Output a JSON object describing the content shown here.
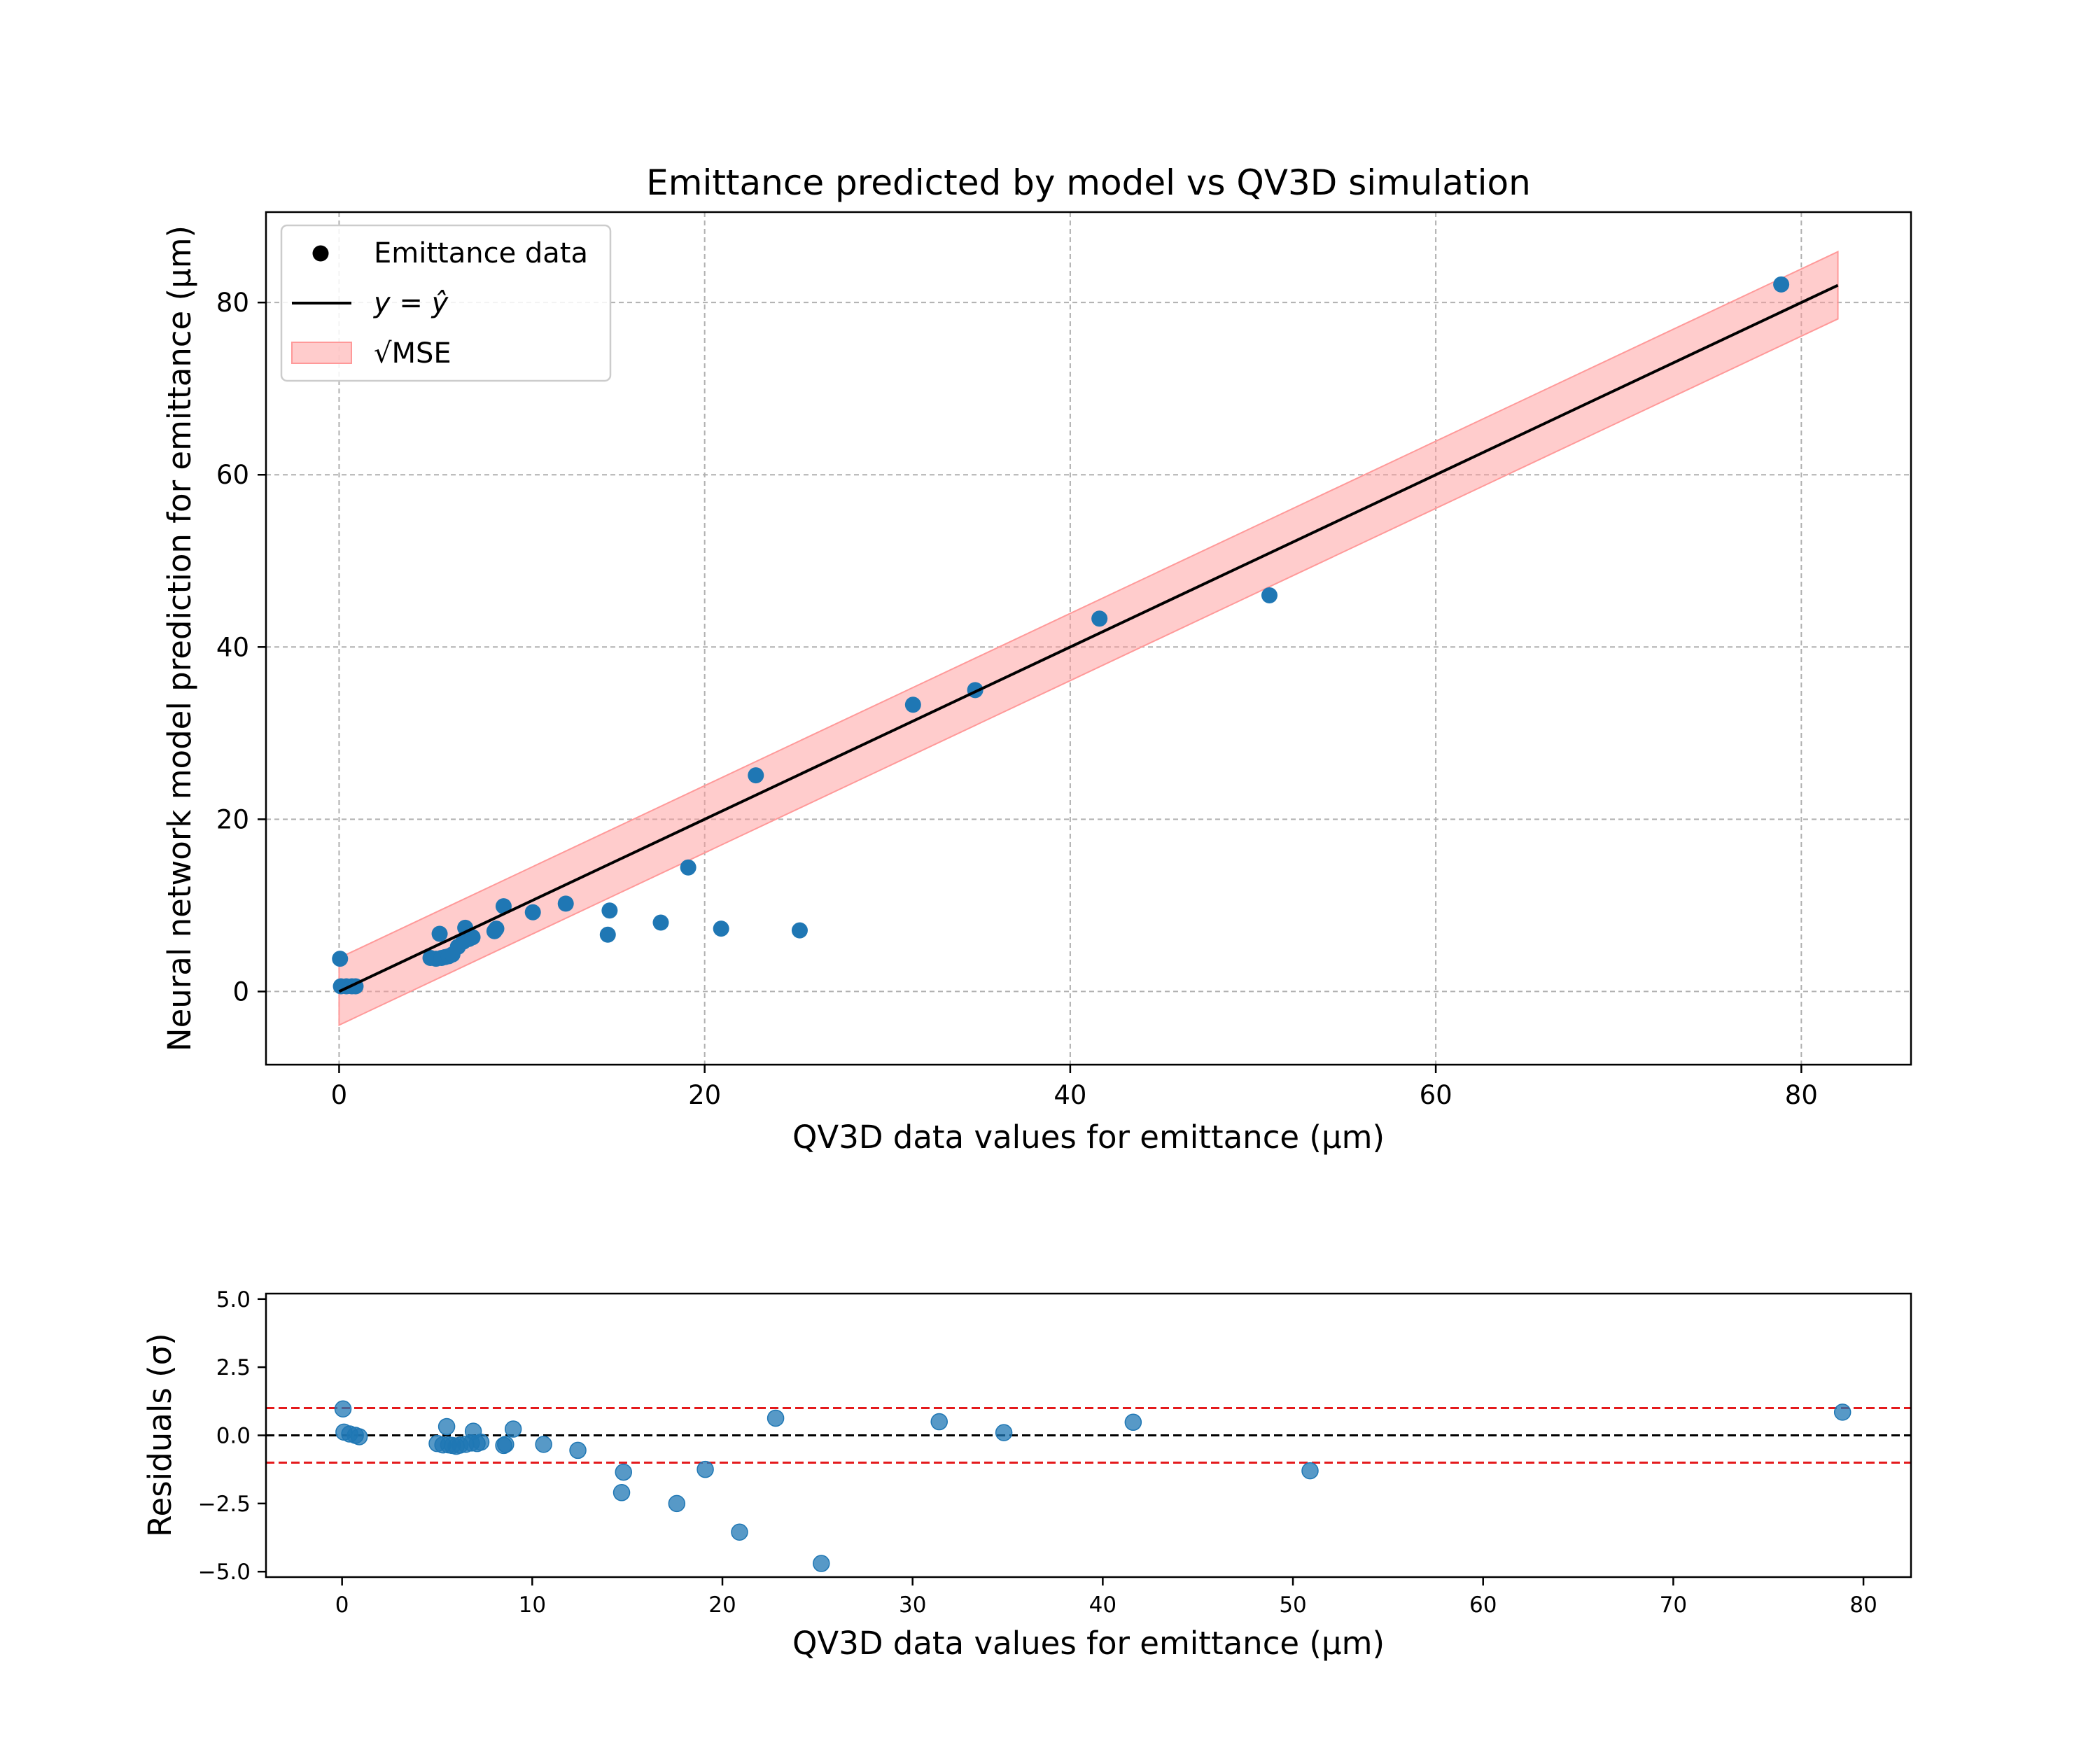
{
  "chart_data": [
    {
      "type": "scatter",
      "title": "Emittance predicted by model vs QV3D simulation",
      "xlabel": "QV3D data values for emittance (μm)",
      "ylabel": "Neural network model prediction for emittance (μm)",
      "xlim": [
        -4,
        86
      ],
      "ylim": [
        -8.5,
        90.5
      ],
      "xticks": [
        0,
        20,
        40,
        60,
        80
      ],
      "yticks": [
        0,
        20,
        40,
        60,
        80
      ],
      "grid": true,
      "legend_position": "top-left",
      "legend": {
        "data": "Emittance data",
        "line": "y = ŷ",
        "band": "√MSE"
      },
      "band_halfwidth": 3.9,
      "reference_line": {
        "x": [
          0,
          82
        ],
        "y": [
          0,
          82
        ]
      },
      "colors": {
        "points": "#1f77b4",
        "line": "#000000",
        "band": "#ff9999"
      },
      "series": [
        {
          "name": "Emittance data",
          "points": [
            [
              0.05,
              3.8
            ],
            [
              0.1,
              0.6
            ],
            [
              0.4,
              0.6
            ],
            [
              0.7,
              0.6
            ],
            [
              0.9,
              0.6
            ],
            [
              5.0,
              3.9
            ],
            [
              5.3,
              3.8
            ],
            [
              5.5,
              6.7
            ],
            [
              5.6,
              3.9
            ],
            [
              5.8,
              4.0
            ],
            [
              6.0,
              4.1
            ],
            [
              6.2,
              4.3
            ],
            [
              6.5,
              5.2
            ],
            [
              6.8,
              5.8
            ],
            [
              6.9,
              7.4
            ],
            [
              7.1,
              6.1
            ],
            [
              7.3,
              6.3
            ],
            [
              8.5,
              7.0
            ],
            [
              8.6,
              7.3
            ],
            [
              9.0,
              9.9
            ],
            [
              10.6,
              9.2
            ],
            [
              12.4,
              10.2
            ],
            [
              14.7,
              6.6
            ],
            [
              14.8,
              9.4
            ],
            [
              17.6,
              8.0
            ],
            [
              19.1,
              14.4
            ],
            [
              20.9,
              7.3
            ],
            [
              22.8,
              25.1
            ],
            [
              25.2,
              7.1
            ],
            [
              31.4,
              33.3
            ],
            [
              34.8,
              35.0
            ],
            [
              41.6,
              43.3
            ],
            [
              50.9,
              46.0
            ],
            [
              78.9,
              82.1
            ]
          ]
        }
      ]
    },
    {
      "type": "scatter",
      "xlabel": "QV3D data values for emittance (μm)",
      "ylabel": "Residuals (σ)",
      "xlim": [
        -4,
        82.5
      ],
      "ylim": [
        -5.2,
        5.2
      ],
      "xticks": [
        0,
        10,
        20,
        30,
        40,
        50,
        60,
        70,
        80
      ],
      "yticks": [
        5.0,
        2.5,
        0.0,
        -2.5,
        -5.0
      ],
      "ytick_labels": [
        "5.0",
        "2.5",
        "0.0",
        "−2.5",
        "−5.0"
      ],
      "grid": false,
      "reference_lines": [
        {
          "y": 0,
          "style": "dashed",
          "color": "#000000"
        },
        {
          "y": 1,
          "style": "dashed",
          "color": "#e41a1c"
        },
        {
          "y": -1,
          "style": "dashed",
          "color": "#e41a1c"
        }
      ],
      "colors": {
        "points": "#1f77b4"
      },
      "series": [
        {
          "points": [
            [
              0.05,
              0.97
            ],
            [
              0.1,
              0.12
            ],
            [
              0.4,
              0.05
            ],
            [
              0.7,
              0.0
            ],
            [
              0.9,
              -0.05
            ],
            [
              5.0,
              -0.3
            ],
            [
              5.3,
              -0.35
            ],
            [
              5.5,
              0.32
            ],
            [
              5.6,
              -0.35
            ],
            [
              5.8,
              -0.37
            ],
            [
              6.0,
              -0.4
            ],
            [
              6.2,
              -0.36
            ],
            [
              6.5,
              -0.33
            ],
            [
              6.8,
              -0.28
            ],
            [
              6.9,
              0.15
            ],
            [
              7.1,
              -0.3
            ],
            [
              7.3,
              -0.25
            ],
            [
              8.5,
              -0.37
            ],
            [
              8.6,
              -0.33
            ],
            [
              9.0,
              0.23
            ],
            [
              10.6,
              -0.33
            ],
            [
              12.4,
              -0.55
            ],
            [
              14.7,
              -2.1
            ],
            [
              14.8,
              -1.35
            ],
            [
              17.6,
              -2.5
            ],
            [
              19.1,
              -1.25
            ],
            [
              20.9,
              -3.55
            ],
            [
              22.8,
              0.63
            ],
            [
              25.2,
              -4.7
            ],
            [
              31.4,
              0.5
            ],
            [
              34.8,
              0.1
            ],
            [
              41.6,
              0.48
            ],
            [
              50.9,
              -1.3
            ],
            [
              78.9,
              0.85
            ]
          ]
        }
      ]
    }
  ]
}
